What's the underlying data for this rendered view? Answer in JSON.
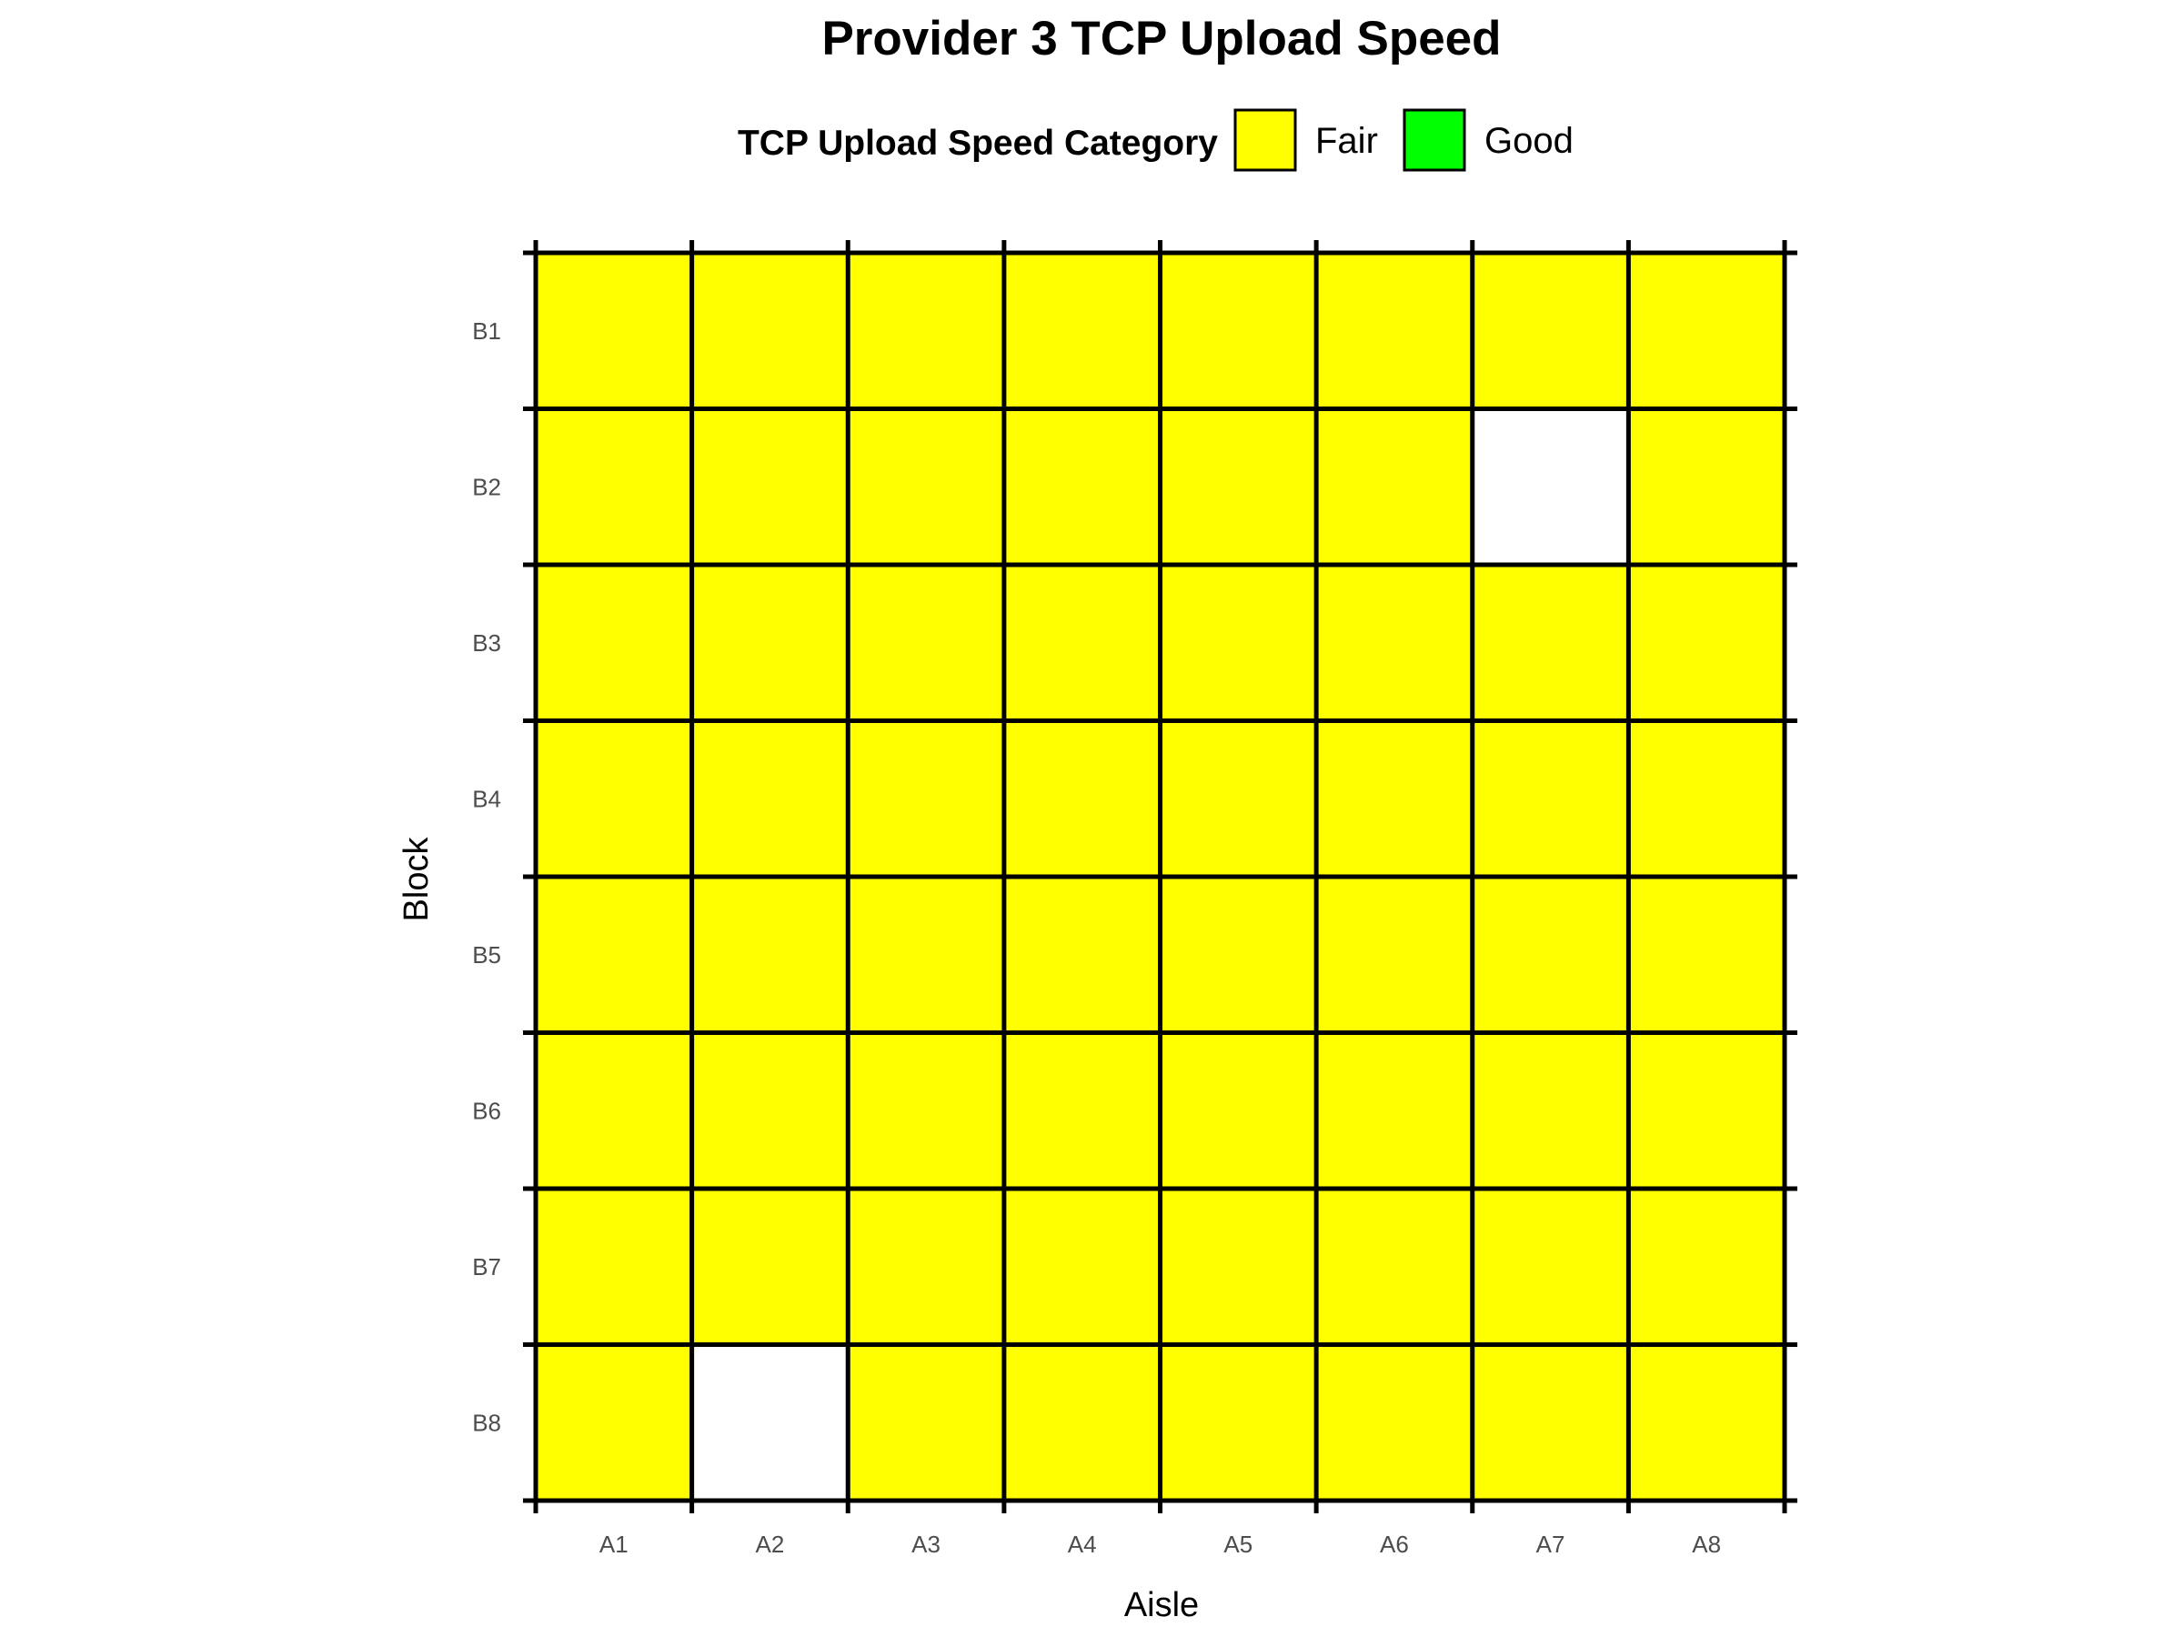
{
  "chart_data": {
    "type": "heatmap",
    "title": "Provider 3 TCP Upload Speed",
    "xlabel": "Aisle",
    "ylabel": "Block",
    "x_categories": [
      "A1",
      "A2",
      "A3",
      "A4",
      "A5",
      "A6",
      "A7",
      "A8"
    ],
    "y_categories": [
      "B1",
      "B2",
      "B3",
      "B4",
      "B5",
      "B6",
      "B7",
      "B8"
    ],
    "legend": {
      "title": "TCP Upload Speed Category",
      "placement": "top",
      "entries": [
        {
          "label": "Fair",
          "color": "#ffff00"
        },
        {
          "label": "Good",
          "color": "#00ff00"
        }
      ]
    },
    "missing_color": "#ffffff",
    "grid_color": "#000000",
    "cells": [
      [
        "Fair",
        "Fair",
        "Fair",
        "Fair",
        "Fair",
        "Fair",
        "Fair",
        "Fair"
      ],
      [
        "Fair",
        "Fair",
        "Fair",
        "Fair",
        "Fair",
        "Fair",
        null,
        "Fair"
      ],
      [
        "Fair",
        "Fair",
        "Fair",
        "Fair",
        "Fair",
        "Fair",
        "Fair",
        "Fair"
      ],
      [
        "Fair",
        "Fair",
        "Fair",
        "Fair",
        "Fair",
        "Fair",
        "Fair",
        "Fair"
      ],
      [
        "Fair",
        "Fair",
        "Fair",
        "Fair",
        "Fair",
        "Fair",
        "Fair",
        "Fair"
      ],
      [
        "Fair",
        "Fair",
        "Fair",
        "Fair",
        "Fair",
        "Fair",
        "Fair",
        "Fair"
      ],
      [
        "Fair",
        "Fair",
        "Fair",
        "Fair",
        "Fair",
        "Fair",
        "Fair",
        "Fair"
      ],
      [
        "Fair",
        null,
        "Fair",
        "Fair",
        "Fair",
        "Fair",
        "Fair",
        "Fair"
      ]
    ]
  }
}
